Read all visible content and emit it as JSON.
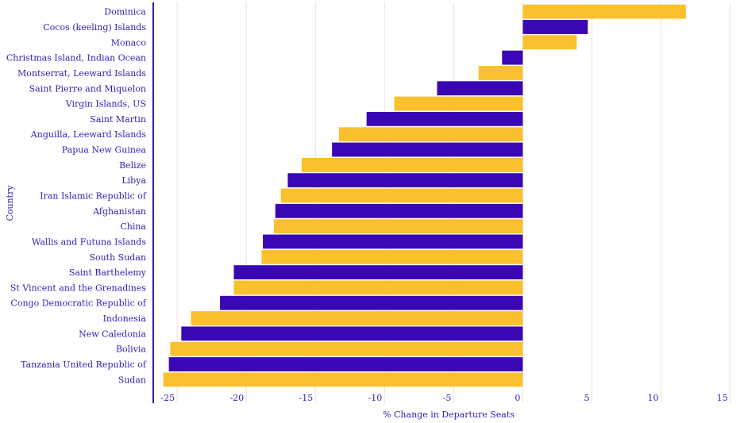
{
  "colors": {
    "primary": "#3a07b5",
    "secondary": "#fbc02d",
    "text": "#3a1ab5",
    "grid": "#f3dede"
  },
  "chart_data": {
    "type": "bar",
    "orientation": "horizontal",
    "xlabel": "% Change in Departure Seats",
    "ylabel": "Country",
    "xlim": [
      -26.5,
      16
    ],
    "xticks": [
      -25,
      -20,
      -15,
      -10,
      -5,
      0,
      5,
      10,
      15
    ],
    "grid": true,
    "categories": [
      "Dominica",
      "Cocos (keeling) Islands",
      "Monaco",
      "Christmas Island, Indian Ocean",
      "Montserrat, Leeward Islands",
      "Saint Pierre and Miquelon",
      "Virgin Islands, US",
      "Saint Martin",
      "Anguilla, Leeward Islands",
      "Papua New Guinea",
      "Belize",
      "Libya",
      "Iran Islamic Republic of",
      "Afghanistan",
      "China",
      "Wallis and Futuna Islands",
      "South Sudan",
      "Saint Barthelemy",
      "St Vincent and the Grenadines",
      "Congo Democratic Republic of",
      "Indonesia",
      "New Caledonia",
      "Bolivia",
      "Tanzania United Republic of",
      "Sudan"
    ],
    "values": [
      11.8,
      4.7,
      3.9,
      -1.5,
      -3.2,
      -6.2,
      -9.3,
      -11.3,
      -13.3,
      -13.8,
      -16.0,
      -17.0,
      -17.5,
      -17.9,
      -18.0,
      -18.8,
      -18.9,
      -20.9,
      -20.9,
      -21.9,
      -24.0,
      -24.7,
      -25.5,
      -25.6,
      -26.0
    ],
    "bar_colors": [
      "#fbc02d",
      "#3a07b5"
    ]
  }
}
